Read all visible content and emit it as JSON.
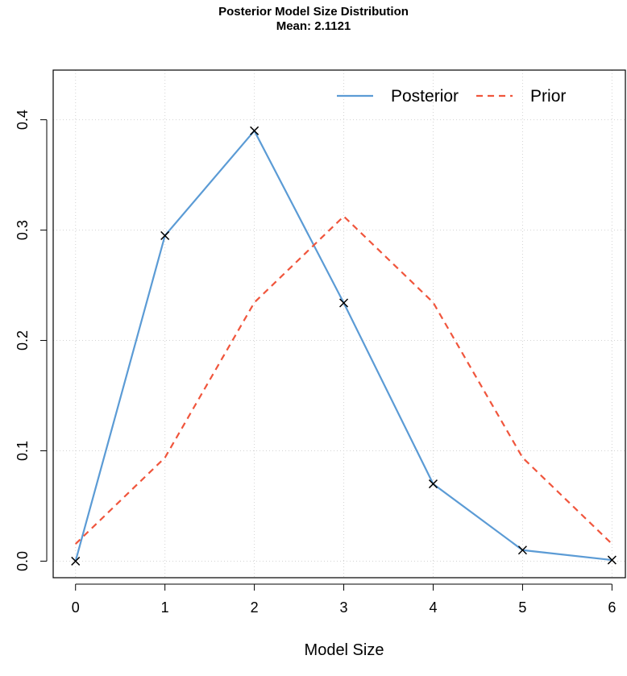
{
  "chart_data": {
    "type": "line",
    "title": "Posterior Model Size Distribution",
    "subtitle": "Mean: 2.1121",
    "xlabel": "Model Size",
    "ylabel": "",
    "x": [
      0,
      1,
      2,
      3,
      4,
      5,
      6
    ],
    "xlim": [
      -0.25,
      6.15
    ],
    "ylim": [
      -0.015,
      0.445
    ],
    "x_ticks": [
      0,
      1,
      2,
      3,
      4,
      5,
      6
    ],
    "y_ticks": [
      0.0,
      0.1,
      0.2,
      0.3,
      0.4
    ],
    "y_tick_labels": [
      "0.0",
      "0.1",
      "0.2",
      "0.3",
      "0.4"
    ],
    "grid": true,
    "legend_position": "top-right",
    "series": [
      {
        "name": "Posterior",
        "values": [
          0.0,
          0.295,
          0.39,
          0.234,
          0.07,
          0.01,
          0.001
        ],
        "color": "#5B9BD5",
        "line_style": "solid",
        "markers": "x"
      },
      {
        "name": "Prior",
        "values": [
          0.0156,
          0.0938,
          0.2344,
          0.3125,
          0.2344,
          0.0938,
          0.0156
        ],
        "color": "#F0553C",
        "line_style": "dashed"
      }
    ]
  }
}
